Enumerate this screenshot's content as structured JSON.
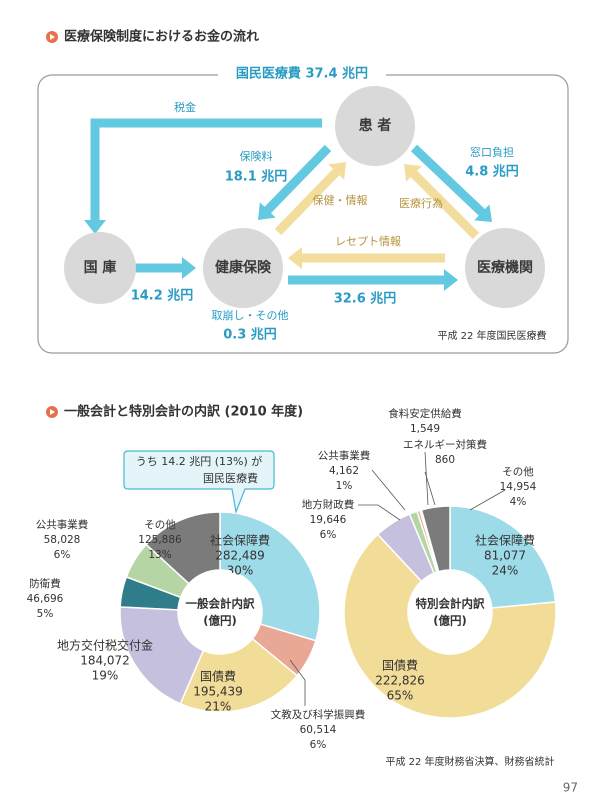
{
  "header": {
    "title": "医療保険制度におけるお金の流れ"
  },
  "flow": {
    "total_label": "国民医療費 37.4 兆円",
    "nodes": [
      "患 者",
      "国 庫",
      "健康保険",
      "医療機関"
    ],
    "edges": [
      {
        "label": "税金"
      },
      {
        "label": "保険料",
        "amount": "18.1 兆円"
      },
      {
        "label": "保健・情報"
      },
      {
        "label": "窓口負担",
        "amount": "4.8 兆円"
      },
      {
        "label": "医療行為"
      },
      {
        "label": "レセプト情報"
      },
      {
        "amount": "14.2 兆円"
      },
      {
        "amount": "32.6 兆円"
      },
      {
        "label": "取崩し・その他",
        "amount": "0.3 兆円"
      }
    ],
    "source": "平成 22 年度国民医療費"
  },
  "section_title": "一般会計と特別会計の内訳 (2010 年度)",
  "chart_data": [
    {
      "type": "pie",
      "title": "一般会計内訳",
      "subtitle": "(億円)",
      "categories": [
        "社会保障費",
        "文教及び科学振興費",
        "国債費",
        "地方交付税交付金",
        "防衛費",
        "公共事業費",
        "その他"
      ],
      "values": [
        282489,
        60514,
        195439,
        184072,
        46696,
        58028,
        125886
      ],
      "value_labels": [
        "282,489",
        "60,514",
        "195,439",
        "184,072",
        "46,696",
        "58,028",
        "125,886"
      ],
      "percent_labels": [
        "30%",
        "6%",
        "21%",
        "19%",
        "5%",
        "6%",
        "13%"
      ],
      "colors": [
        "#9ddbe8",
        "#e9a795",
        "#f1dc98",
        "#c4c0de",
        "#2f7c8a",
        "#b5d6a4",
        "#7b7b7b"
      ],
      "annotations": [
        "うち 14.2 兆円 (13%) が",
        "国民医療費"
      ]
    },
    {
      "type": "pie",
      "title": "特別会計内訳",
      "subtitle": "(億円)",
      "categories": [
        "社会保障費",
        "国債費",
        "地方財政費",
        "公共事業費",
        "食料安定供給費",
        "エネルギー対策費",
        "その他"
      ],
      "values": [
        81077,
        222826,
        19646,
        4162,
        1549,
        860,
        14954
      ],
      "value_labels": [
        "81,077",
        "222,826",
        "19,646",
        "4,162",
        "1,549",
        "860",
        "14,954"
      ],
      "percent_labels": [
        "24%",
        "65%",
        "6%",
        "1%",
        null,
        null,
        "4%"
      ],
      "colors": [
        "#9ddbe8",
        "#f1dc98",
        "#c4c0de",
        "#b5d6a4",
        "#e9a795",
        "#2f7c8a",
        "#7b7b7b"
      ]
    }
  ],
  "footnote": "平成 22 年度財務省決算、財務省統計",
  "page_number": "97"
}
